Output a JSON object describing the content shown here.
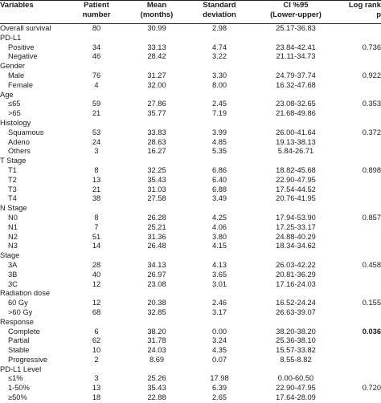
{
  "headers": {
    "variables": "Variables",
    "patient_number": [
      "Patient",
      "number"
    ],
    "mean": [
      "Mean",
      "(months)"
    ],
    "sd": [
      "Standard",
      "deviation"
    ],
    "ci": [
      "CI %95",
      "(Lower-upper)"
    ],
    "log_rank": [
      "Log rank",
      "p"
    ]
  },
  "rows": [
    {
      "type": "data",
      "label": "Overall survival",
      "n": "80",
      "mean": "30.99",
      "sd": "2.98",
      "ci": "25.17-36.83",
      "p": ""
    },
    {
      "type": "group",
      "label": "PD-L1"
    },
    {
      "type": "sub",
      "label": "Positive",
      "n": "34",
      "mean": "33.13",
      "sd": "4.74",
      "ci": "23.84-42.41",
      "p": "0.736"
    },
    {
      "type": "sub",
      "label": "Negative",
      "n": "46",
      "mean": "28.42",
      "sd": "3.22",
      "ci": "21.11-34.73",
      "p": ""
    },
    {
      "type": "group",
      "label": "Gender"
    },
    {
      "type": "sub",
      "label": "Male",
      "n": "76",
      "mean": "31.27",
      "sd": "3.30",
      "ci": "24.79-37.74",
      "p": "0.922"
    },
    {
      "type": "sub",
      "label": "Female",
      "n": "4",
      "mean": "32.00",
      "sd": "8.00",
      "ci": "16.32-47.68",
      "p": ""
    },
    {
      "type": "group",
      "label": "Age"
    },
    {
      "type": "sub",
      "label": "≤65",
      "n": "59",
      "mean": "27.86",
      "sd": "2.45",
      "ci": "23.08-32.65",
      "p": "0.353"
    },
    {
      "type": "sub",
      "label": ">65",
      "n": "21",
      "mean": "35.77",
      "sd": "7.19",
      "ci": "21.68-49.86",
      "p": ""
    },
    {
      "type": "group",
      "label": "Histology"
    },
    {
      "type": "sub",
      "label": "Squamous",
      "n": "53",
      "mean": "33.83",
      "sd": "3.99",
      "ci": "26.00-41.64",
      "p": "0.372"
    },
    {
      "type": "sub",
      "label": "Adeno",
      "n": "24",
      "mean": "28.63",
      "sd": "4.85",
      "ci": "19.13-38.13",
      "p": ""
    },
    {
      "type": "sub",
      "label": "Others",
      "n": "3",
      "mean": "16.27",
      "sd": "5.35",
      "ci": "5.84-26.71",
      "p": ""
    },
    {
      "type": "group",
      "label": "T Stage"
    },
    {
      "type": "sub",
      "label": "T1",
      "n": "8",
      "mean": "32.25",
      "sd": "6.86",
      "ci": "18.82-45.68",
      "p": "0.898"
    },
    {
      "type": "sub",
      "label": "T2",
      "n": "13",
      "mean": "35.43",
      "sd": "6.40",
      "ci": "22.90-47.95",
      "p": ""
    },
    {
      "type": "sub",
      "label": "T3",
      "n": "21",
      "mean": "31.03",
      "sd": "6.88",
      "ci": "17.54-44.52",
      "p": ""
    },
    {
      "type": "sub",
      "label": "T4",
      "n": "38",
      "mean": "27.58",
      "sd": "3.49",
      "ci": "20.76-41.95",
      "p": ""
    },
    {
      "type": "group",
      "label": "N Stage"
    },
    {
      "type": "sub",
      "label": "N0",
      "n": "8",
      "mean": "26.28",
      "sd": "4.25",
      "ci": "17.94-53.90",
      "p": "0.857"
    },
    {
      "type": "sub",
      "label": "N1",
      "n": "7",
      "mean": "25.21",
      "sd": "4.06",
      "ci": "17.25-33.17",
      "p": ""
    },
    {
      "type": "sub",
      "label": "N2",
      "n": "51",
      "mean": "31.36",
      "sd": "3.80",
      "ci": "24.88-40.29",
      "p": ""
    },
    {
      "type": "sub",
      "label": "N3",
      "n": "14",
      "mean": "26.48",
      "sd": "4.15",
      "ci": "18.34-34.62",
      "p": ""
    },
    {
      "type": "group",
      "label": "Stage"
    },
    {
      "type": "sub",
      "label": "3A",
      "n": "28",
      "mean": "34.13",
      "sd": "4.13",
      "ci": "26.03-42.22",
      "p": "0.458"
    },
    {
      "type": "sub",
      "label": "3B",
      "n": "40",
      "mean": "26.97",
      "sd": "3.65",
      "ci": "20.81-36.29",
      "p": ""
    },
    {
      "type": "sub",
      "label": "3C",
      "n": "12",
      "mean": "23.08",
      "sd": "3.01",
      "ci": "17.16-24.03",
      "p": ""
    },
    {
      "type": "group",
      "label": "Radiation dose"
    },
    {
      "type": "sub",
      "label": "60 Gy",
      "n": "12",
      "mean": "20.38",
      "sd": "2.46",
      "ci": "16.52-24.24",
      "p": "0.155"
    },
    {
      "type": "sub",
      "label": ">60 Gy",
      "n": "68",
      "mean": "32.85",
      "sd": "3.17",
      "ci": "26.63-39.07",
      "p": ""
    },
    {
      "type": "group",
      "label": "Response"
    },
    {
      "type": "sub",
      "label": "Complete",
      "n": "6",
      "mean": "38.20",
      "sd": "0.00",
      "ci": "38.20-38.20",
      "p": "0.036",
      "p_bold": true
    },
    {
      "type": "sub",
      "label": "Partial",
      "n": "62",
      "mean": "31.78",
      "sd": "3.24",
      "ci": "25.36-38.10",
      "p": ""
    },
    {
      "type": "sub",
      "label": "Stable",
      "n": "10",
      "mean": "24.03",
      "sd": "4.35",
      "ci": "15.57-33.82",
      "p": ""
    },
    {
      "type": "sub",
      "label": "Progressive",
      "n": "2",
      "mean": "8.69",
      "sd": "0.07",
      "ci": "8.55-8.82",
      "p": ""
    },
    {
      "type": "group",
      "label": "PD-L1 Level"
    },
    {
      "type": "sub",
      "label": "≤1%",
      "n": "3",
      "mean": "25.26",
      "sd": "17.98",
      "ci": "0.00-60.50",
      "p": ""
    },
    {
      "type": "sub",
      "label": "1-50%",
      "n": "13",
      "mean": "35.43",
      "sd": "6.39",
      "ci": "22.90-47.95",
      "p": "0.720"
    },
    {
      "type": "sub",
      "label": "≥50%",
      "n": "18",
      "mean": "22.88",
      "sd": "2.65",
      "ci": "17.64-28.09",
      "p": ""
    }
  ]
}
